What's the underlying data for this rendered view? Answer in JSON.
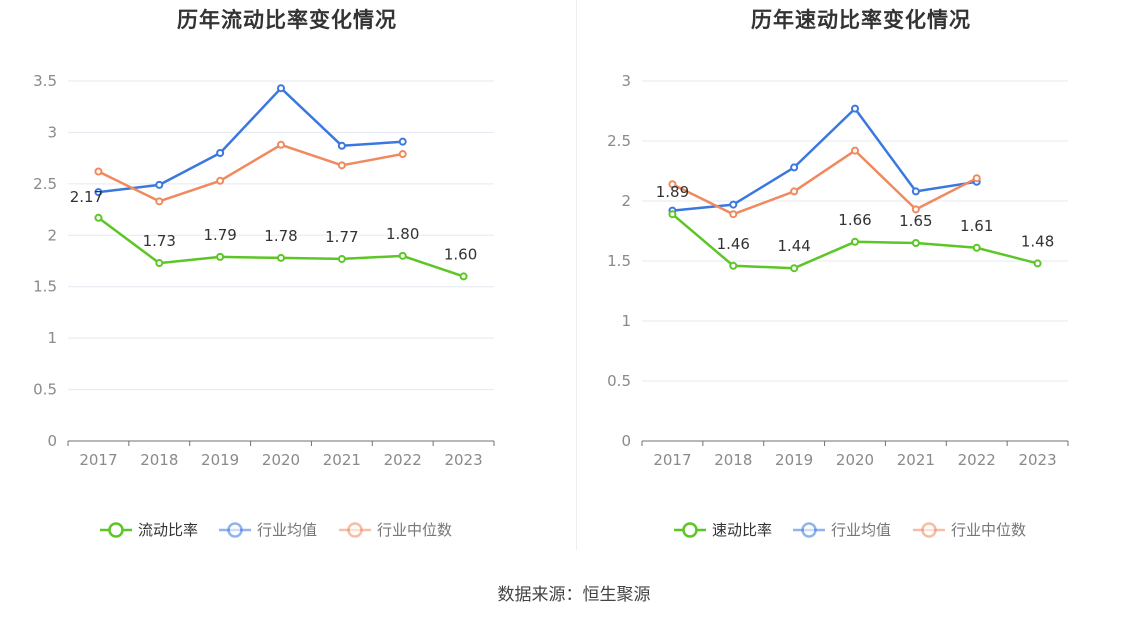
{
  "source_label": "数据来源：恒生聚源",
  "chart_data": [
    {
      "type": "line",
      "title": "历年流动比率变化情况",
      "categories": [
        "2017",
        "2018",
        "2019",
        "2020",
        "2021",
        "2022",
        "2023"
      ],
      "ylim": [
        0,
        3.5
      ],
      "yticks": [
        0,
        0.5,
        1,
        1.5,
        2,
        2.5,
        3,
        3.5
      ],
      "ytick_labels": [
        "0",
        "0.5",
        "1",
        "1.5",
        "2",
        "2.5",
        "3",
        "3.5"
      ],
      "grid": true,
      "legend_position": "bottom",
      "series": [
        {
          "name": "流动比率",
          "color": "#5cc626",
          "values": [
            2.17,
            1.73,
            1.79,
            1.78,
            1.77,
            1.8,
            1.6
          ],
          "labels": [
            "2.17",
            "1.73",
            "1.79",
            "1.78",
            "1.77",
            "1.80",
            "1.60"
          ]
        },
        {
          "name": "行业均值",
          "color": "#3a78e0",
          "values": [
            2.42,
            2.49,
            2.8,
            3.43,
            2.87,
            2.91,
            null
          ]
        },
        {
          "name": "行业中位数",
          "color": "#f0895e",
          "values": [
            2.62,
            2.33,
            2.53,
            2.88,
            2.68,
            2.79,
            null
          ]
        }
      ]
    },
    {
      "type": "line",
      "title": "历年速动比率变化情况",
      "categories": [
        "2017",
        "2018",
        "2019",
        "2020",
        "2021",
        "2022",
        "2023"
      ],
      "ylim": [
        0,
        3
      ],
      "yticks": [
        0,
        0.5,
        1,
        1.5,
        2,
        2.5,
        3
      ],
      "ytick_labels": [
        "0",
        "0.5",
        "1",
        "1.5",
        "2",
        "2.5",
        "3"
      ],
      "grid": true,
      "legend_position": "bottom",
      "series": [
        {
          "name": "速动比率",
          "color": "#5cc626",
          "values": [
            1.89,
            1.46,
            1.44,
            1.66,
            1.65,
            1.61,
            1.48
          ],
          "labels": [
            "1.89",
            "1.46",
            "1.44",
            "1.66",
            "1.65",
            "1.61",
            "1.48"
          ]
        },
        {
          "name": "行业均值",
          "color": "#3a78e0",
          "values": [
            1.92,
            1.97,
            2.28,
            2.77,
            2.08,
            2.16,
            null
          ]
        },
        {
          "name": "行业中位数",
          "color": "#f0895e",
          "values": [
            2.14,
            1.89,
            2.08,
            2.42,
            1.93,
            2.19,
            null
          ]
        }
      ]
    }
  ]
}
